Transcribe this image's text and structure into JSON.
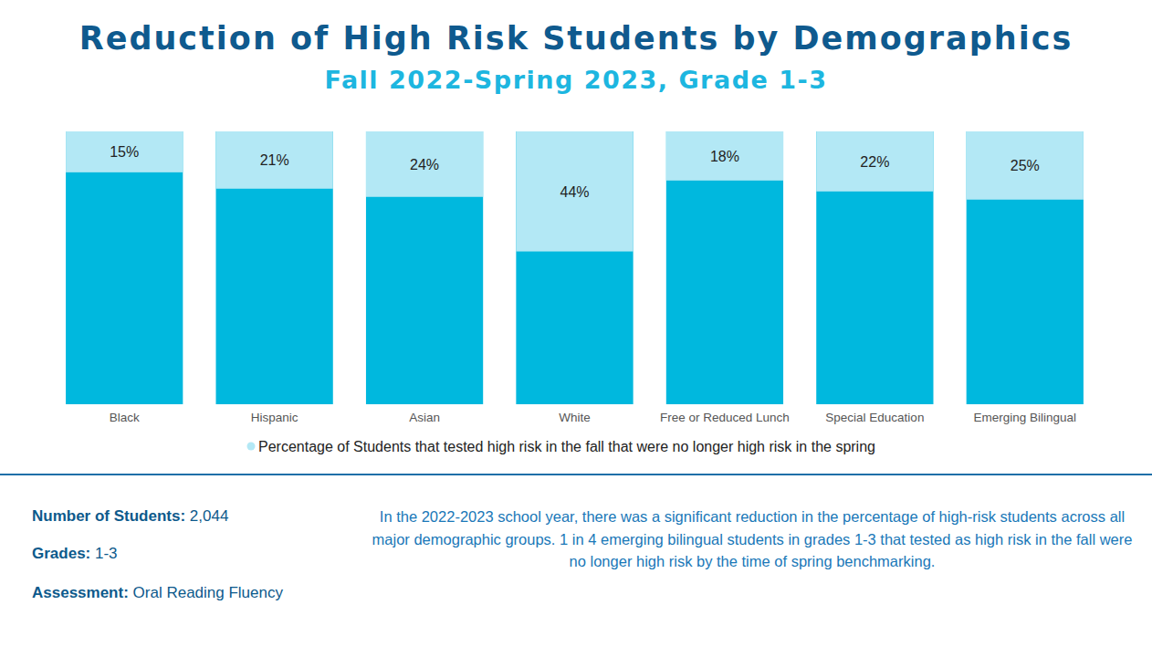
{
  "chart_data": {
    "type": "bar",
    "title": "Reduction of High Risk Students by Demographics",
    "subtitle": "Fall 2022-Spring 2023, Grade 1-3",
    "categories": [
      "Black",
      "Hispanic",
      "Asian",
      "White",
      "Free or Reduced Lunch",
      "Special Education",
      "Emerging Bilingual"
    ],
    "series": [
      {
        "name": "Percentage of Students that tested high risk in the fall that were no longer high risk in the spring",
        "color": "#b3e8f5",
        "values": [
          15,
          21,
          24,
          44,
          18,
          22,
          25
        ],
        "value_labels": [
          "15%",
          "21%",
          "24%",
          "44%",
          "18%",
          "22%",
          "25%"
        ]
      }
    ],
    "ylim": [
      0,
      100
    ],
    "grid": false,
    "tick_labels": "x",
    "data_labels": true,
    "legend": "bottom"
  },
  "footer": {
    "number_label": "Number of Students:",
    "number": "2,044",
    "grades_label": "Grades:",
    "grades": "1-3",
    "assessment_label": "Assessment:",
    "assessment": "Oral Reading Fluency",
    "description": "In the 2022-2023 school year, there was a significant reduction in the percentage of high-risk students across all major demographic groups. 1 in 4 emerging bilingual students in grades 1-3 that tested as high risk in the fall were no longer high risk by the time of spring benchmarking."
  }
}
